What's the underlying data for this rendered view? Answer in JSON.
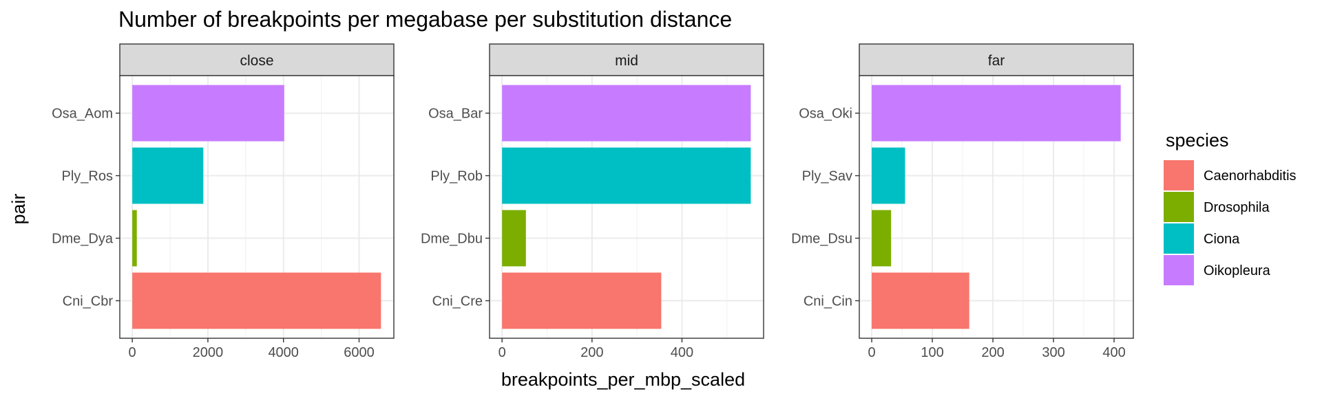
{
  "chart_data": {
    "type": "bar",
    "orientation": "horizontal",
    "title": "Number of breakpoints per megabase per substitution distance",
    "xlabel": "breakpoints_per_mbp_scaled",
    "ylabel": "pair",
    "legend": {
      "title": "species",
      "placement": "right",
      "entries": [
        {
          "name": "Caenorhabditis",
          "color": "#F8766D"
        },
        {
          "name": "Drosophila",
          "color": "#7CAE00"
        },
        {
          "name": "Ciona",
          "color": "#00BFC4"
        },
        {
          "name": "Oikopleura",
          "color": "#C77CFF"
        }
      ]
    },
    "grid": true,
    "facets": [
      {
        "label": "close",
        "xlim": [
          -330,
          6920
        ],
        "xticks": [
          0,
          2000,
          4000,
          6000
        ],
        "xtick_labels": [
          "0",
          "2000",
          "4000",
          "6000"
        ],
        "bars": [
          {
            "pair": "Osa_Aom",
            "species": "Oikopleura",
            "value": 4020
          },
          {
            "pair": "Ply_Ros",
            "species": "Ciona",
            "value": 1880
          },
          {
            "pair": "Dme_Dya",
            "species": "Drosophila",
            "value": 120
          },
          {
            "pair": "Cni_Cbr",
            "species": "Caenorhabditis",
            "value": 6580
          }
        ]
      },
      {
        "label": "mid",
        "xlim": [
          -27.8,
          581.5
        ],
        "xticks": [
          0,
          200,
          400
        ],
        "xtick_labels": [
          "0",
          "200",
          "400"
        ],
        "bars": [
          {
            "pair": "Osa_Bar",
            "species": "Oikopleura",
            "value": 553
          },
          {
            "pair": "Ply_Rob",
            "species": "Ciona",
            "value": 553
          },
          {
            "pair": "Dme_Dbu",
            "species": "Drosophila",
            "value": 53
          },
          {
            "pair": "Cni_Cre",
            "species": "Caenorhabditis",
            "value": 354
          }
        ]
      },
      {
        "label": "far",
        "xlim": [
          -20.5,
          431.8
        ],
        "xticks": [
          0,
          100,
          200,
          300,
          400
        ],
        "xtick_labels": [
          "0",
          "100",
          "200",
          "300",
          "400"
        ],
        "bars": [
          {
            "pair": "Osa_Oki",
            "species": "Oikopleura",
            "value": 411
          },
          {
            "pair": "Ply_Sav",
            "species": "Ciona",
            "value": 55
          },
          {
            "pair": "Dme_Dsu",
            "species": "Drosophila",
            "value": 32
          },
          {
            "pair": "Cni_Cin",
            "species": "Caenorhabditis",
            "value": 161
          }
        ]
      }
    ]
  }
}
